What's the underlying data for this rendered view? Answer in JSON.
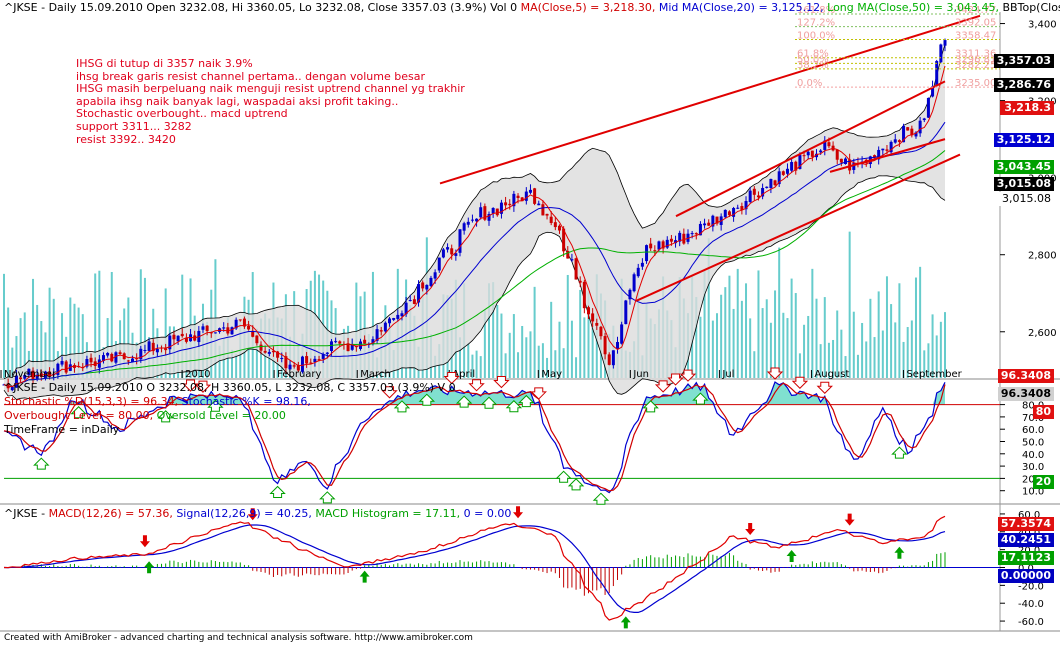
{
  "header": {
    "price_title_prefix": "^JKSE - Daily 15.09.2010 Open 3232.08, Hi 3360.05, Lo 3232.08, Close 3357.03 (3.9%) Vol 0",
    "ma5": "MA(Close,5) = 3,218.30,",
    "ma20": "Mid MA(Close,20) = 3,125.12,",
    "ma50": "Long MA(Close,50) = 3,043.45,",
    "bbtop": "BBTop(Close"
  },
  "annotations": [
    "IHSG di tutup di 3357 naik 3.9%",
    "ihsg break garis resist channel pertama.. dengan volume besar",
    "IHSG masih berpeluang naik menguji resist uptrend channel yg trakhir",
    "apabila ihsg naik banyak lagi, waspadai aksi profit taking..",
    "Stochastic overbought.. macd uptrend",
    "support 3311... 3282",
    "resist 3392.. 3420"
  ],
  "fib_labels": [
    "161.8%",
    "127.2%",
    "100.0%",
    "61.8%",
    "50.0%",
    "38.2%",
    "0.0%"
  ],
  "fib_values": [
    "3424.77",
    "3392.05",
    "3358.47",
    "3311.36",
    "3296.81",
    "3282.25",
    "3235.00"
  ],
  "price_boxes": [
    {
      "label": "3,357.03",
      "bg": "#000000",
      "fg": "#ffffff"
    },
    {
      "label": "3,286.76",
      "bg": "#000000",
      "fg": "#ffffff"
    },
    {
      "label": "3,218.3",
      "bg": "#e01010",
      "fg": "#ffffff"
    },
    {
      "label": "3,125.12",
      "bg": "#0000d0",
      "fg": "#ffffff"
    },
    {
      "label": "3,043.45",
      "bg": "#00a000",
      "fg": "#ffffff"
    },
    {
      "label": "3,015.08",
      "bg": "#000000",
      "fg": "#ffffff"
    },
    {
      "label": "3,015.08",
      "bg": "#ffffff",
      "fg": "#000000"
    }
  ],
  "stoch_header": {
    "title": "^JKSE - Daily 15.09.2010 O 3232.08, H 3360.05, L 3232.08, C 3357.03 (3.9%) V 0",
    "d_line": "Stochastic %D(15,3,3) = 96.34,",
    "k_line": "Stochastic %K = 98.16,",
    "ob_line": "Overbought Level = 80.00,",
    "os_line": "Oversold Level = 20.00",
    "tf_line": "TimeFrame = inDaily"
  },
  "stoch_boxes": [
    {
      "label": "96.3408",
      "bg": "#e01010",
      "fg": "#ffffff"
    },
    {
      "label": "96.3408",
      "bg": "#d0d0d0",
      "fg": "#000000"
    },
    {
      "label": "80",
      "bg": "#e01010",
      "fg": "#ffffff"
    },
    {
      "label": "20",
      "bg": "#00a000",
      "fg": "#ffffff"
    }
  ],
  "macd_header": {
    "prefix": "^JKSE - ",
    "macd": "MACD(12,26) = 57.36,",
    "signal": "Signal(12,26,9) = 40.25,",
    "hist": "MACD Histogram = 17.11,",
    "zero": "0 = 0.00"
  },
  "macd_boxes": [
    {
      "label": "57.3574",
      "bg": "#e01010",
      "fg": "#ffffff"
    },
    {
      "label": "40.2451",
      "bg": "#0000c0",
      "fg": "#ffffff"
    },
    {
      "label": "17.1123",
      "bg": "#00a000",
      "fg": "#ffffff"
    },
    {
      "label": "0.00000",
      "bg": "#0000c0",
      "fg": "#ffffff"
    }
  ],
  "footer": "Created with AmiBroker - advanced charting and technical analysis software. http://www.amibroker.com",
  "colors": {
    "bull": "#0000cc",
    "bear": "#cc0000",
    "ma5": "#e00000",
    "ma20": "#0000d0",
    "ma50": "#00b000",
    "volume": "#66cccc",
    "band_fill": "#dcdcdc",
    "channel": "#e00000"
  },
  "chart_data": [
    {
      "type": "candlestick",
      "title": "^JKSE - Daily",
      "x": [
        "November",
        "2010",
        "February",
        "March",
        "April",
        "May",
        "Jun",
        "Jul",
        "August",
        "September"
      ],
      "y_ticks": [
        2600,
        2800,
        3000,
        3200,
        3400
      ],
      "ylim": [
        2480,
        3430
      ],
      "last": {
        "open": 3232.08,
        "high": 3360.05,
        "low": 3232.08,
        "close": 3357.03
      },
      "anchors": [
        {
          "date": "2009-11-02",
          "close": 2470
        },
        {
          "date": "2009-11-20",
          "close": 2510
        },
        {
          "date": "2009-12-10",
          "close": 2530
        },
        {
          "date": "2010-01-04",
          "close": 2590
        },
        {
          "date": "2010-01-20",
          "close": 2620
        },
        {
          "date": "2010-02-05",
          "close": 2500
        },
        {
          "date": "2010-02-20",
          "close": 2560
        },
        {
          "date": "2010-03-05",
          "close": 2580
        },
        {
          "date": "2010-03-20",
          "close": 2700
        },
        {
          "date": "2010-04-10",
          "close": 2900
        },
        {
          "date": "2010-04-28",
          "close": 2960
        },
        {
          "date": "2010-05-05",
          "close": 2900
        },
        {
          "date": "2010-05-25",
          "close": 2530
        },
        {
          "date": "2010-06-05",
          "close": 2810
        },
        {
          "date": "2010-06-20",
          "close": 2850
        },
        {
          "date": "2010-07-05",
          "close": 2920
        },
        {
          "date": "2010-07-20",
          "close": 3000
        },
        {
          "date": "2010-08-05",
          "close": 3080
        },
        {
          "date": "2010-08-15",
          "close": 3020
        },
        {
          "date": "2010-08-30",
          "close": 3110
        },
        {
          "date": "2010-09-07",
          "close": 3130
        },
        {
          "date": "2010-09-10",
          "close": 3232
        },
        {
          "date": "2010-09-15",
          "close": 3357
        }
      ],
      "moving_averages": {
        "MA5": 3218.3,
        "MA20": 3125.12,
        "MA50": 3043.45
      }
    },
    {
      "type": "line",
      "title": "Stochastic",
      "y_ticks": [
        10,
        20,
        30,
        40,
        50,
        60,
        70,
        80,
        90
      ],
      "ylim": [
        0,
        100
      ],
      "levels": {
        "overbought": 80,
        "oversold": 20
      },
      "series": [
        {
          "name": "Stochastic %D(15,3,3)",
          "last": 96.34
        },
        {
          "name": "Stochastic %K",
          "last": 98.16
        }
      ],
      "anchors": [
        {
          "date": "2009-11-02",
          "k": 55
        },
        {
          "date": "2009-11-15",
          "k": 40
        },
        {
          "date": "2009-11-25",
          "k": 85
        },
        {
          "date": "2009-12-10",
          "k": 60
        },
        {
          "date": "2009-12-28",
          "k": 85
        },
        {
          "date": "2010-01-20",
          "k": 88
        },
        {
          "date": "2010-02-01",
          "k": 15
        },
        {
          "date": "2010-02-10",
          "k": 35
        },
        {
          "date": "2010-02-18",
          "k": 15
        },
        {
          "date": "2010-03-05",
          "k": 75
        },
        {
          "date": "2010-03-20",
          "k": 92
        },
        {
          "date": "2010-04-10",
          "k": 90
        },
        {
          "date": "2010-04-28",
          "k": 88
        },
        {
          "date": "2010-05-10",
          "k": 30
        },
        {
          "date": "2010-05-25",
          "k": 5
        },
        {
          "date": "2010-06-05",
          "k": 85
        },
        {
          "date": "2010-06-25",
          "k": 95
        },
        {
          "date": "2010-07-05",
          "k": 55
        },
        {
          "date": "2010-07-20",
          "k": 95
        },
        {
          "date": "2010-08-05",
          "k": 85
        },
        {
          "date": "2010-08-15",
          "k": 30
        },
        {
          "date": "2010-08-25",
          "k": 75
        },
        {
          "date": "2010-09-03",
          "k": 40
        },
        {
          "date": "2010-09-15",
          "k": 98
        }
      ]
    },
    {
      "type": "line",
      "title": "MACD",
      "y_ticks": [
        -60,
        -40,
        -20,
        0,
        20,
        40,
        60
      ],
      "ylim": [
        -70,
        70
      ],
      "series": [
        {
          "name": "MACD(12,26)",
          "last": 57.36
        },
        {
          "name": "Signal(12,26,9)",
          "last": 40.25
        },
        {
          "name": "MACD Histogram",
          "last": 17.11
        }
      ],
      "anchors": [
        {
          "date": "2009-11-02",
          "m": 0
        },
        {
          "date": "2009-11-25",
          "m": 10
        },
        {
          "date": "2009-12-20",
          "m": 15
        },
        {
          "date": "2010-01-20",
          "m": 52
        },
        {
          "date": "2010-02-10",
          "m": 20
        },
        {
          "date": "2010-02-25",
          "m": 0
        },
        {
          "date": "2010-03-25",
          "m": 20
        },
        {
          "date": "2010-04-20",
          "m": 50
        },
        {
          "date": "2010-05-05",
          "m": 38
        },
        {
          "date": "2010-05-25",
          "m": -60
        },
        {
          "date": "2010-06-15",
          "m": -15
        },
        {
          "date": "2010-07-05",
          "m": 35
        },
        {
          "date": "2010-07-20",
          "m": 22
        },
        {
          "date": "2010-08-10",
          "m": 42
        },
        {
          "date": "2010-08-25",
          "m": 28
        },
        {
          "date": "2010-09-08",
          "m": 35
        },
        {
          "date": "2010-09-15",
          "m": 57
        }
      ]
    }
  ]
}
